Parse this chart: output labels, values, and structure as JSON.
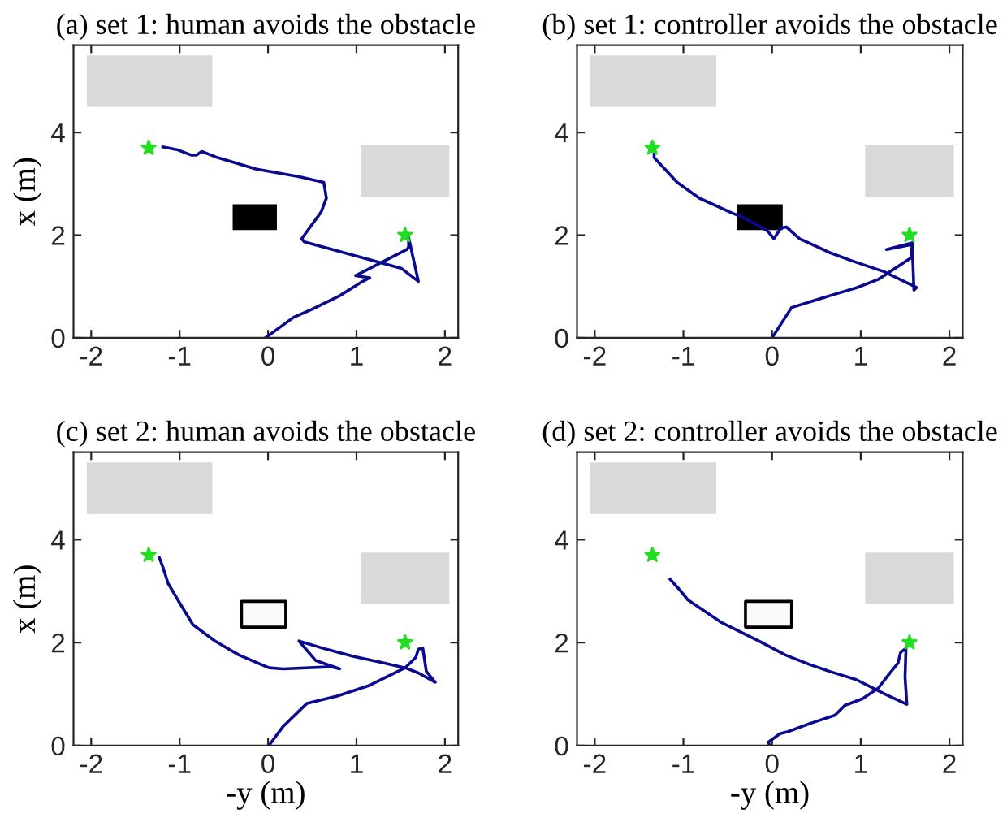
{
  "chart_data": [
    {
      "type": "line",
      "title": "(a) set 1: human avoids the obstacle",
      "ylabel": "x (m)",
      "xlim": [
        -2.2,
        2.15
      ],
      "ylim": [
        0,
        5.7
      ],
      "xticks": [
        -2,
        -1,
        0,
        1,
        2
      ],
      "yticks": [
        0,
        2,
        4
      ],
      "grid": false,
      "legend": false,
      "series": [
        {
          "type": "area",
          "color": "#d9d9d9",
          "x": [
            -2.05,
            -0.63
          ],
          "values": [
            null,
            null
          ],
          "lower": [
            4.5,
            4.5
          ],
          "upper": [
            5.5,
            5.5
          ]
        },
        {
          "type": "area",
          "color": "#d9d9d9",
          "x": [
            1.05,
            2.05
          ],
          "values": [
            null,
            null
          ],
          "lower": [
            2.75,
            2.75
          ],
          "upper": [
            3.75,
            3.75
          ]
        },
        {
          "type": "area",
          "color": "#000000",
          "x": [
            -0.4,
            0.1
          ],
          "values": [
            null,
            null
          ],
          "lower": [
            2.1,
            2.1
          ],
          "upper": [
            2.6,
            2.6
          ]
        },
        {
          "type": "line",
          "color": "#0a0a8f",
          "x": [
            -0.03,
            0.29,
            0.5,
            0.81,
            1.05,
            1.15,
            0.99,
            1.57,
            1.59,
            1.59,
            1.7,
            1.51,
            0.41,
            0.38,
            0.6,
            0.66,
            0.63,
            0.35,
            -0.14,
            -0.57,
            -0.75,
            -0.81,
            -0.87,
            -1.02,
            -1.19
          ],
          "values": [
            0,
            0.4,
            0.56,
            0.82,
            1.08,
            1.17,
            1.21,
            1.72,
            1.77,
            1.95,
            1.1,
            1.35,
            1.87,
            1.93,
            2.45,
            2.72,
            3.03,
            3.14,
            3.29,
            3.51,
            3.63,
            3.56,
            3.56,
            3.66,
            3.72
          ]
        },
        {
          "type": "scatter",
          "marker": "star",
          "color": "#22dd22",
          "x": [
            -1.35,
            1.55
          ],
          "values": [
            3.7,
            2.0
          ]
        }
      ]
    },
    {
      "type": "line",
      "title": "(b) set 1: controller avoids the obstacle",
      "xlim": [
        -2.2,
        2.15
      ],
      "ylim": [
        0,
        5.7
      ],
      "xticks": [
        -2,
        -1,
        0,
        1,
        2
      ],
      "yticks": [
        0,
        2,
        4
      ],
      "grid": false,
      "legend": false,
      "series": [
        {
          "type": "area",
          "color": "#d9d9d9",
          "x": [
            -2.05,
            -0.63
          ],
          "values": [
            null,
            null
          ],
          "lower": [
            4.5,
            4.5
          ],
          "upper": [
            5.5,
            5.5
          ]
        },
        {
          "type": "area",
          "color": "#d9d9d9",
          "x": [
            1.05,
            2.05
          ],
          "values": [
            null,
            null
          ],
          "lower": [
            2.75,
            2.75
          ],
          "upper": [
            3.75,
            3.75
          ]
        },
        {
          "type": "area",
          "color": "#000000",
          "x": [
            -0.4,
            0.12
          ],
          "values": [
            null,
            null
          ],
          "lower": [
            2.1,
            2.1
          ],
          "upper": [
            2.6,
            2.6
          ]
        },
        {
          "type": "line",
          "color": "#0a0a8f",
          "x": [
            0,
            0.22,
            0.65,
            0.96,
            1.2,
            1.57,
            1.58,
            1.29,
            1.58,
            1.6,
            1.63,
            1.26,
            0.9,
            0.65,
            0.31,
            0.16,
            0.1,
            0.02,
            -0.05,
            -0.33,
            -0.45,
            -0.82,
            -1.07,
            -1.33,
            -1.33
          ],
          "values": [
            0,
            0.59,
            0.82,
            0.98,
            1.14,
            1.56,
            1.82,
            1.72,
            1.85,
            0.93,
            0.98,
            1.29,
            1.5,
            1.66,
            1.93,
            2.16,
            2.14,
            1.93,
            2.08,
            2.35,
            2.43,
            2.72,
            3.03,
            3.51,
            3.66
          ]
        },
        {
          "type": "scatter",
          "marker": "star",
          "color": "#22dd22",
          "x": [
            -1.35,
            1.55
          ],
          "values": [
            3.7,
            2.0
          ]
        }
      ]
    },
    {
      "type": "line",
      "title": "(c) set 2: human avoids the obstacle",
      "xlabel": "-y (m)",
      "ylabel": "x (m)",
      "xlim": [
        -2.2,
        2.15
      ],
      "ylim": [
        0,
        5.7
      ],
      "xticks": [
        -2,
        -1,
        0,
        1,
        2
      ],
      "yticks": [
        0,
        2,
        4
      ],
      "grid": false,
      "legend": false,
      "series": [
        {
          "type": "area",
          "color": "#d9d9d9",
          "x": [
            -2.05,
            -0.63
          ],
          "values": [
            null,
            null
          ],
          "lower": [
            4.5,
            4.5
          ],
          "upper": [
            5.5,
            5.5
          ]
        },
        {
          "type": "area",
          "color": "#d9d9d9",
          "x": [
            1.05,
            2.05
          ],
          "values": [
            null,
            null
          ],
          "lower": [
            2.75,
            2.75
          ],
          "upper": [
            3.75,
            3.75
          ]
        },
        {
          "type": "area",
          "line_style": "solid",
          "color": "#000000",
          "x": [
            -0.3,
            0.2
          ],
          "values": [
            null,
            null
          ],
          "lower": [
            2.3,
            2.3
          ],
          "upper": [
            2.8,
            2.8
          ]
        },
        {
          "type": "line",
          "color": "#0a0a8f",
          "x": [
            0.01,
            0.17,
            0.44,
            0.78,
            1.15,
            1.55,
            1.67,
            1.7,
            1.75,
            1.79,
            1.89,
            1.7,
            1.55,
            1.27,
            0.97,
            0.66,
            0.35,
            0.54,
            0.81,
            0.72,
            0.17,
            0.01,
            -0.33,
            -0.6,
            -0.85,
            -1.0,
            -1.13,
            -1.19,
            -1.23
          ],
          "values": [
            0,
            0.37,
            0.82,
            0.96,
            1.17,
            1.51,
            1.71,
            1.87,
            1.89,
            1.44,
            1.23,
            1.41,
            1.51,
            1.62,
            1.73,
            1.87,
            2.03,
            1.65,
            1.49,
            1.53,
            1.49,
            1.51,
            1.76,
            2.03,
            2.35,
            2.77,
            3.15,
            3.47,
            3.65
          ]
        },
        {
          "type": "scatter",
          "marker": "star",
          "color": "#22dd22",
          "x": [
            -1.35,
            1.55
          ],
          "values": [
            3.7,
            2.0
          ]
        }
      ]
    },
    {
      "type": "line",
      "title": "(d) set 2: controller avoids the obstacle",
      "xlabel": "-y (m)",
      "xlim": [
        -2.2,
        2.15
      ],
      "ylim": [
        0,
        5.7
      ],
      "xticks": [
        -2,
        -1,
        0,
        1,
        2
      ],
      "yticks": [
        0,
        2,
        4
      ],
      "grid": false,
      "legend": false,
      "series": [
        {
          "type": "area",
          "color": "#d9d9d9",
          "x": [
            -2.05,
            -0.63
          ],
          "values": [
            null,
            null
          ],
          "lower": [
            4.5,
            4.5
          ],
          "upper": [
            5.5,
            5.5
          ]
        },
        {
          "type": "area",
          "color": "#d9d9d9",
          "x": [
            1.05,
            2.05
          ],
          "values": [
            null,
            null
          ],
          "lower": [
            2.75,
            2.75
          ],
          "upper": [
            3.75,
            3.75
          ]
        },
        {
          "type": "area",
          "line_style": "solid",
          "color": "#000000",
          "x": [
            -0.3,
            0.22
          ],
          "values": [
            null,
            null
          ],
          "lower": [
            2.3,
            2.3
          ],
          "upper": [
            2.8,
            2.8
          ]
        },
        {
          "type": "line",
          "color": "#0a0a8f",
          "x": [
            -0.03,
            -0.04,
            0.09,
            0.18,
            0.43,
            0.71,
            0.82,
            1.02,
            1.2,
            1.32,
            1.42,
            1.45,
            1.51,
            1.5,
            1.52,
            1.26,
            0.95,
            0.65,
            0.43,
            0.15,
            -0.15,
            -0.58,
            -0.95,
            -1.05,
            -1.15
          ],
          "values": [
            0,
            0.07,
            0.23,
            0.27,
            0.43,
            0.59,
            0.78,
            0.91,
            1.12,
            1.39,
            1.6,
            1.81,
            1.89,
            1.33,
            0.8,
            1.01,
            1.28,
            1.44,
            1.57,
            1.76,
            2.03,
            2.4,
            2.83,
            3.04,
            3.23
          ]
        },
        {
          "type": "scatter",
          "marker": "star",
          "color": "#22dd22",
          "x": [
            -1.35,
            1.55
          ],
          "values": [
            3.7,
            2.0
          ]
        }
      ]
    }
  ]
}
